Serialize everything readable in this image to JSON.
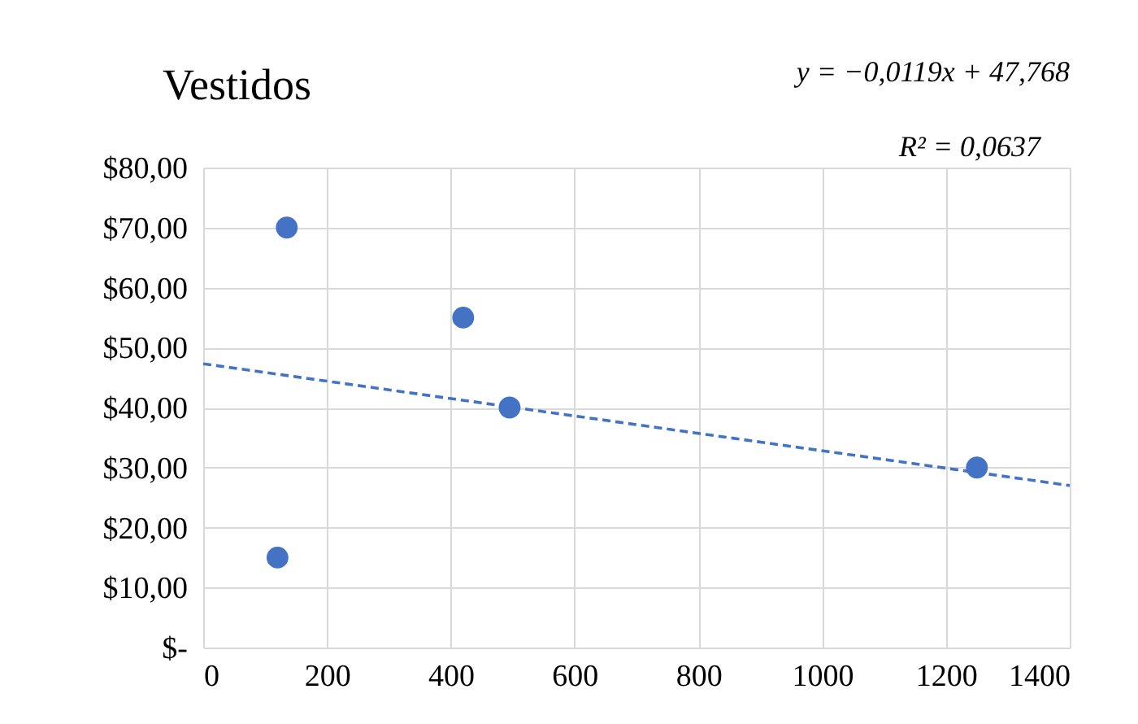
{
  "chart_data": {
    "type": "scatter",
    "title": "Vestidos",
    "annotations": [
      "y = −0,0119x + 47,768",
      "R² = 0,0637"
    ],
    "series": [
      {
        "type": "scatter",
        "color": "#4472c4",
        "marker": "circle",
        "x": [
          120,
          135,
          420,
          495,
          1250
        ],
        "values": [
          15,
          70,
          55,
          40,
          30
        ]
      },
      {
        "type": "line",
        "color": "#4472c4",
        "marker": "none",
        "line_style": "dashed",
        "x": [
          0,
          1400
        ],
        "values": [
          47.3,
          27
        ]
      }
    ],
    "xlim": [
      0,
      1400
    ],
    "xticks": [
      0,
      200,
      400,
      600,
      800,
      1000,
      1200,
      1400
    ],
    "ylim": [
      0,
      80
    ],
    "yticks": [
      {
        "value": 0,
        "label": "$-"
      },
      {
        "value": 10,
        "label": "$10,00"
      },
      {
        "value": 20,
        "label": "$20,00"
      },
      {
        "value": 30,
        "label": "$30,00"
      },
      {
        "value": 40,
        "label": "$40,00"
      },
      {
        "value": 50,
        "label": "$50,00"
      },
      {
        "value": 60,
        "label": "$60,00"
      },
      {
        "value": 70,
        "label": "$70,00"
      },
      {
        "value": 80,
        "label": "$80,00"
      }
    ],
    "grid": true
  }
}
